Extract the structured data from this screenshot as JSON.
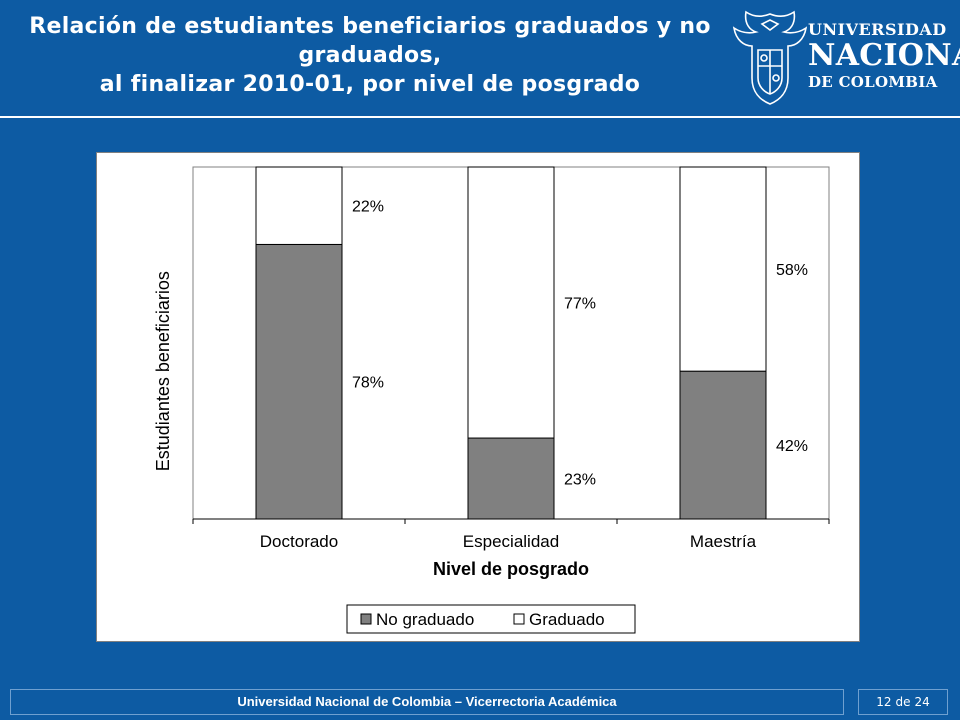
{
  "slide": {
    "title_lines": [
      "Relación de estudiantes beneficiarios graduados y no",
      "graduados,",
      "al finalizar 2010-01, por nivel de posgrado"
    ],
    "logo": {
      "line1": "UNIVERSIDAD",
      "line2": "NACIONAL",
      "line3": "DE COLOMBIA"
    },
    "footer": "Universidad Nacional de Colombia – Vicerrectoria Académica",
    "page": {
      "current": "12",
      "separator": "de",
      "total": "24"
    }
  },
  "chart_data": {
    "type": "bar",
    "stacked": true,
    "percent": true,
    "categories": [
      "Doctorado",
      "Especialidad",
      "Maestría"
    ],
    "series": [
      {
        "name": "No graduado",
        "values": [
          78,
          23,
          42
        ],
        "labels": [
          "78%",
          "23%",
          "42%"
        ],
        "color": "#808080"
      },
      {
        "name": "Graduado",
        "values": [
          22,
          77,
          58
        ],
        "labels": [
          "22%",
          "77%",
          "58%"
        ],
        "color": "#ffffff"
      }
    ],
    "xlabel": "Nivel de posgrado",
    "ylabel": "Estudiantes beneficiarios",
    "ylim": [
      0,
      100
    ],
    "legend": "bottom",
    "grid": false,
    "colors": {
      "frame_border": "#808080",
      "plot_border": "#808080",
      "bar_border": "#000000"
    }
  },
  "theme": {
    "background": "#0d5ba3",
    "text": "#ffffff"
  }
}
